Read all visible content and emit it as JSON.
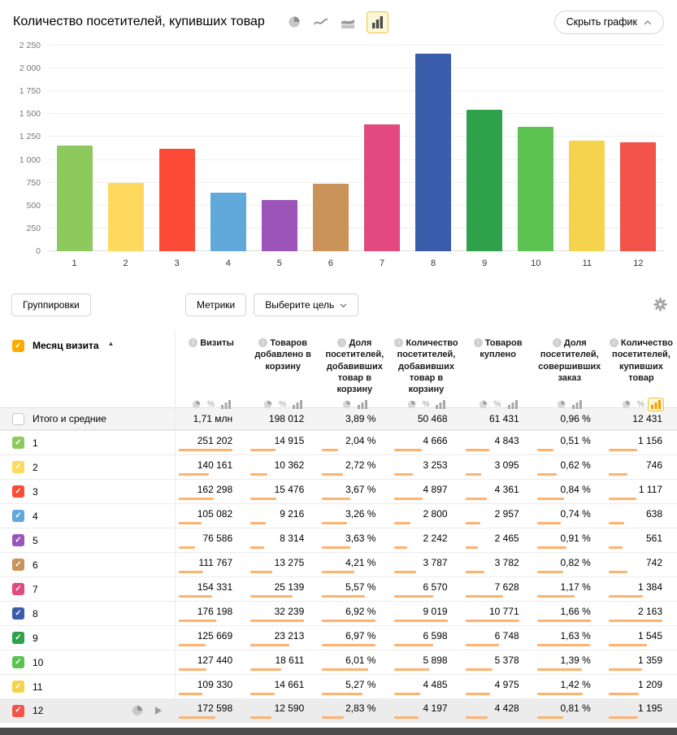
{
  "header": {
    "title": "Количество посетителей, купивших товар",
    "hide_chart_label": "Скрыть график",
    "chart_type_icons": [
      "pie-chart-icon",
      "line-chart-icon",
      "stacked-area-icon",
      "bar-chart-icon"
    ],
    "selected_chart_type": "bar-chart-icon"
  },
  "chart_data": {
    "type": "bar",
    "title": "Количество посетителей, купивших товар",
    "categories": [
      "1",
      "2",
      "3",
      "4",
      "5",
      "6",
      "7",
      "8",
      "9",
      "10",
      "11",
      "12"
    ],
    "values": [
      1156,
      746,
      1117,
      638,
      561,
      742,
      1384,
      2163,
      1545,
      1359,
      1209,
      1195
    ],
    "colors": [
      "#8ec95e",
      "#ffd95e",
      "#fb4b36",
      "#61a8db",
      "#9b54b8",
      "#c9935a",
      "#e2497e",
      "#3a5dab",
      "#2fa14a",
      "#5cc350",
      "#f5d34f",
      "#f2544a"
    ],
    "xlabel": "",
    "ylabel": "",
    "ylim": [
      0,
      2250
    ],
    "yticks": [
      0,
      250,
      500,
      750,
      1000,
      1250,
      1500,
      1750,
      2000,
      2250
    ],
    "ytick_labels": [
      "0",
      "250",
      "500",
      "750",
      "1 000",
      "1 250",
      "1 500",
      "1 750",
      "2 000",
      "2 250"
    ],
    "grid": true,
    "legend": "none"
  },
  "toolbar": {
    "groupings_label": "Группировки",
    "metrics_label": "Метрики",
    "goal_label": "Выберите цель",
    "gear_icon": "settings-gear-icon"
  },
  "colors": {
    "mini_bar": "#ffb26e",
    "select_all_checkbox": "#ffab00",
    "selected_toggle": "#ef9d00",
    "accent_yellow": "#eec63e"
  },
  "table": {
    "row_header": "Месяц визита",
    "sort_icon": "▲",
    "columns": [
      {
        "label": "Визиты",
        "toggles": [
          "pie",
          "percent",
          "bars"
        ]
      },
      {
        "label": "Товаров добавлено в корзину",
        "toggles": [
          "pie",
          "percent",
          "bars"
        ]
      },
      {
        "label": "Доля посетителей, добавивших товар в корзину",
        "toggles": [
          "pie",
          "bars"
        ]
      },
      {
        "label": "Количество посетителей, добавивших товар в корзину",
        "toggles": [
          "pie",
          "percent",
          "bars"
        ]
      },
      {
        "label": "Товаров куплено",
        "toggles": [
          "pie",
          "percent",
          "bars"
        ]
      },
      {
        "label": "Доля посетителей, совершивших заказ",
        "toggles": [
          "pie",
          "bars"
        ]
      },
      {
        "label": "Количество посетителей, купивших товар",
        "toggles": [
          "pie",
          "percent",
          "bars"
        ],
        "selected_toggle": "bars"
      }
    ],
    "totals": {
      "label": "Итого и средние",
      "values": [
        "1,71 млн",
        "198 012",
        "3,89 %",
        "50 468",
        "61 431",
        "0,96 %",
        "12 431"
      ]
    },
    "rows": [
      {
        "label": "1",
        "values": [
          "251 202",
          "14 915",
          "2,04 %",
          "4 666",
          "4 843",
          "0,51 %",
          "1 156"
        ]
      },
      {
        "label": "2",
        "values": [
          "140 161",
          "10 362",
          "2,72 %",
          "3 253",
          "3 095",
          "0,62 %",
          "746"
        ]
      },
      {
        "label": "3",
        "values": [
          "162 298",
          "15 476",
          "3,67 %",
          "4 897",
          "4 361",
          "0,84 %",
          "1 117"
        ]
      },
      {
        "label": "4",
        "values": [
          "105 082",
          "9 216",
          "3,26 %",
          "2 800",
          "2 957",
          "0,74 %",
          "638"
        ]
      },
      {
        "label": "5",
        "values": [
          "76 586",
          "8 314",
          "3,63 %",
          "2 242",
          "2 465",
          "0,91 %",
          "561"
        ]
      },
      {
        "label": "6",
        "values": [
          "111 767",
          "13 275",
          "4,21 %",
          "3 787",
          "3 782",
          "0,82 %",
          "742"
        ]
      },
      {
        "label": "7",
        "values": [
          "154 331",
          "25 139",
          "5,57 %",
          "6 570",
          "7 628",
          "1,17 %",
          "1 384"
        ]
      },
      {
        "label": "8",
        "values": [
          "176 198",
          "32 239",
          "6,92 %",
          "9 019",
          "10 771",
          "1,66 %",
          "2 163"
        ]
      },
      {
        "label": "9",
        "values": [
          "125 669",
          "23 213",
          "6,97 %",
          "6 598",
          "6 748",
          "1,63 %",
          "1 545"
        ]
      },
      {
        "label": "10",
        "values": [
          "127 440",
          "18 611",
          "6,01 %",
          "5 898",
          "5 378",
          "1,39 %",
          "1 359"
        ]
      },
      {
        "label": "11",
        "values": [
          "109 330",
          "14 661",
          "5,27 %",
          "4 485",
          "4 975",
          "1,42 %",
          "1 209"
        ]
      },
      {
        "label": "12",
        "values": [
          "172 598",
          "12 590",
          "2,83 %",
          "4 197",
          "4 428",
          "0,81 %",
          "1 195"
        ]
      }
    ]
  }
}
